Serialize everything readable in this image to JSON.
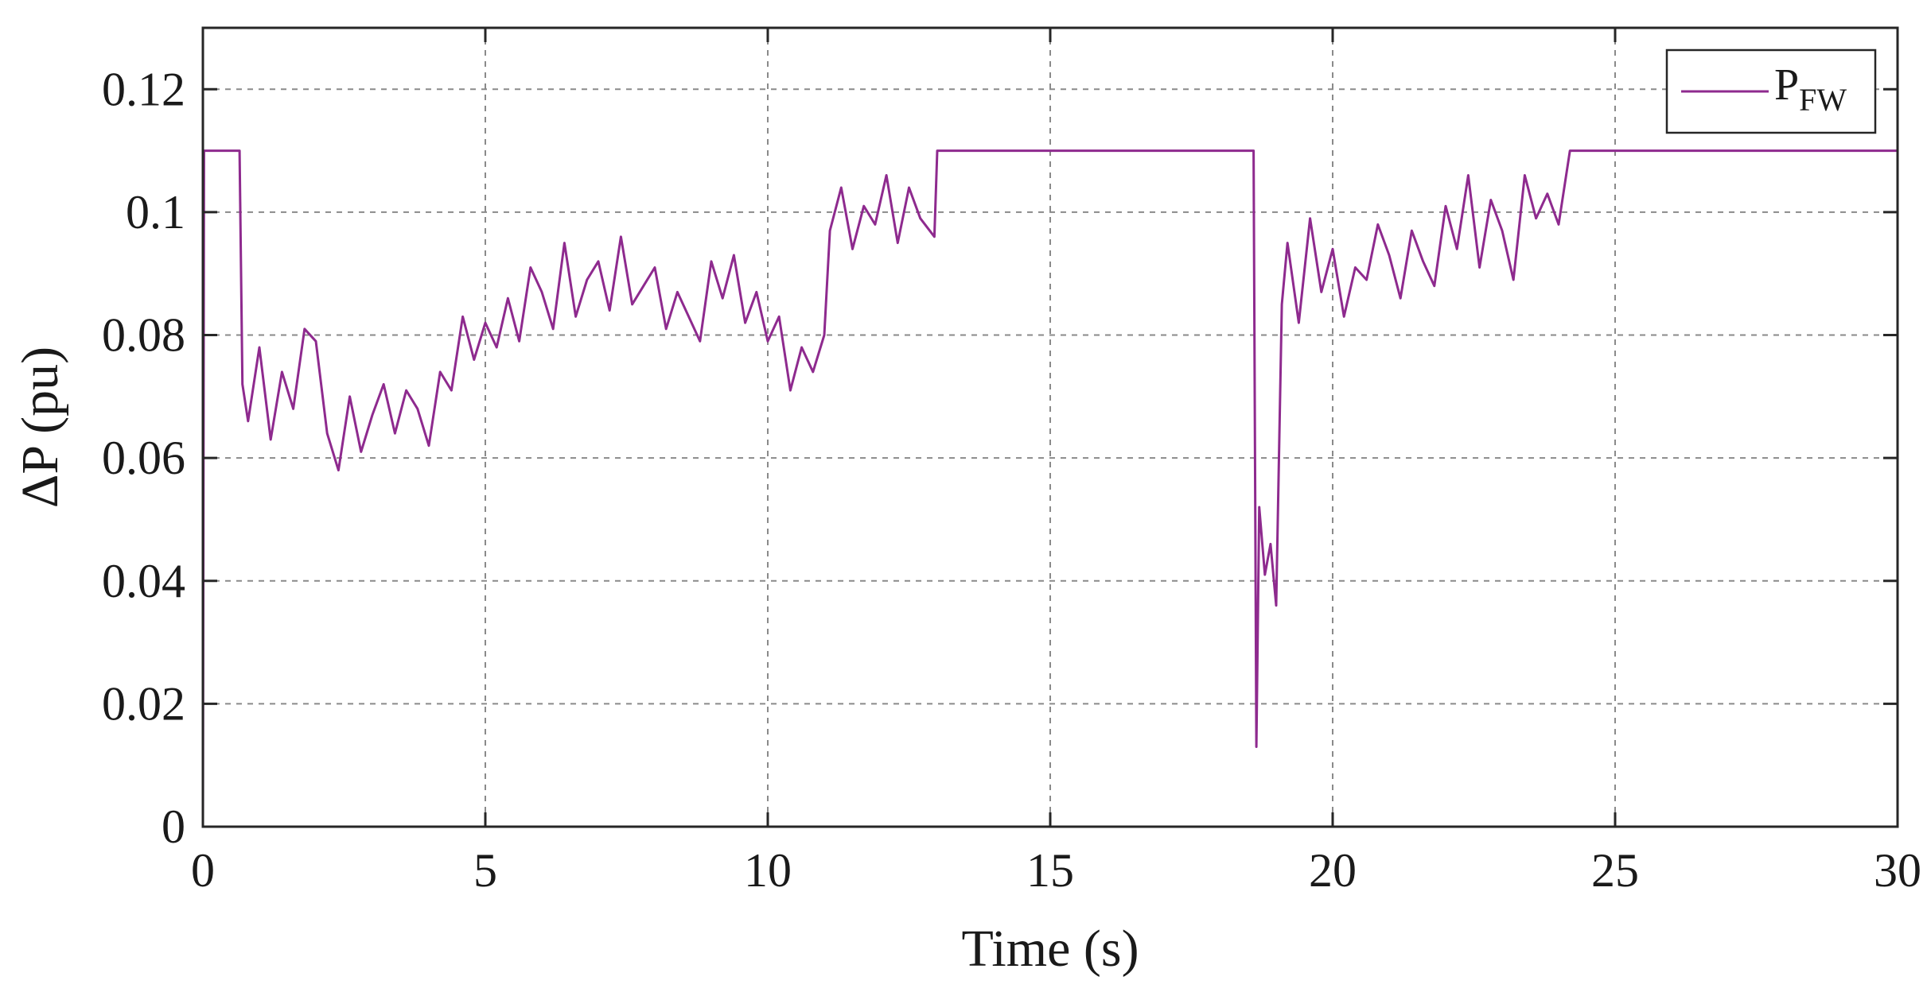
{
  "chart_data": {
    "type": "line",
    "xlabel": "Time (s)",
    "ylabel": "ΔP (pu)",
    "xlim": [
      0,
      30
    ],
    "ylim": [
      0,
      0.13
    ],
    "xticks": [
      0,
      5,
      10,
      15,
      20,
      25,
      30
    ],
    "xtick_labels": [
      "0",
      "5",
      "10",
      "15",
      "20",
      "25",
      "30"
    ],
    "yticks": [
      0,
      0.02,
      0.04,
      0.06,
      0.08,
      0.1,
      0.12
    ],
    "ytick_labels": [
      "0",
      "0.02",
      "0.04",
      "0.06",
      "0.08",
      "0.1",
      "0.12"
    ],
    "grid": true,
    "legend_position": "top-right",
    "series": [
      {
        "name": "P",
        "name_subscript": "FW",
        "color": "#8e2a8e",
        "x": [
          0,
          0.02,
          0.65,
          0.7,
          0.8,
          1.0,
          1.2,
          1.4,
          1.6,
          1.8,
          2.0,
          2.2,
          2.4,
          2.6,
          2.8,
          3.0,
          3.2,
          3.4,
          3.6,
          3.8,
          4.0,
          4.2,
          4.4,
          4.6,
          4.8,
          5.0,
          5.2,
          5.4,
          5.6,
          5.8,
          6.0,
          6.2,
          6.4,
          6.6,
          6.8,
          7.0,
          7.2,
          7.4,
          7.6,
          7.8,
          8.0,
          8.2,
          8.4,
          8.6,
          8.8,
          9.0,
          9.2,
          9.4,
          9.6,
          9.8,
          10.0,
          10.2,
          10.4,
          10.6,
          10.8,
          11.0,
          11.1,
          11.3,
          11.5,
          11.7,
          11.9,
          12.1,
          12.3,
          12.5,
          12.7,
          12.95,
          13.0,
          18.6,
          18.65,
          18.7,
          18.8,
          18.9,
          19.0,
          19.1,
          19.2,
          19.4,
          19.6,
          19.8,
          20.0,
          20.2,
          20.4,
          20.6,
          20.8,
          21.0,
          21.2,
          21.4,
          21.6,
          21.8,
          22.0,
          22.2,
          22.4,
          22.6,
          22.8,
          23.0,
          23.2,
          23.4,
          23.6,
          23.8,
          24.0,
          24.2,
          30
        ],
        "y": [
          0,
          0.11,
          0.11,
          0.072,
          0.066,
          0.078,
          0.063,
          0.074,
          0.068,
          0.081,
          0.079,
          0.064,
          0.058,
          0.07,
          0.061,
          0.067,
          0.072,
          0.064,
          0.071,
          0.068,
          0.062,
          0.074,
          0.071,
          0.083,
          0.076,
          0.082,
          0.078,
          0.086,
          0.079,
          0.091,
          0.087,
          0.081,
          0.095,
          0.083,
          0.089,
          0.092,
          0.084,
          0.096,
          0.085,
          0.088,
          0.091,
          0.081,
          0.087,
          0.083,
          0.079,
          0.092,
          0.086,
          0.093,
          0.082,
          0.087,
          0.079,
          0.083,
          0.071,
          0.078,
          0.074,
          0.08,
          0.097,
          0.104,
          0.094,
          0.101,
          0.098,
          0.106,
          0.095,
          0.104,
          0.099,
          0.096,
          0.11,
          0.11,
          0.013,
          0.052,
          0.041,
          0.046,
          0.036,
          0.085,
          0.095,
          0.082,
          0.099,
          0.087,
          0.094,
          0.083,
          0.091,
          0.089,
          0.098,
          0.093,
          0.086,
          0.097,
          0.092,
          0.088,
          0.101,
          0.094,
          0.106,
          0.091,
          0.102,
          0.097,
          0.089,
          0.106,
          0.099,
          0.103,
          0.098,
          0.11,
          0.11
        ]
      }
    ]
  }
}
